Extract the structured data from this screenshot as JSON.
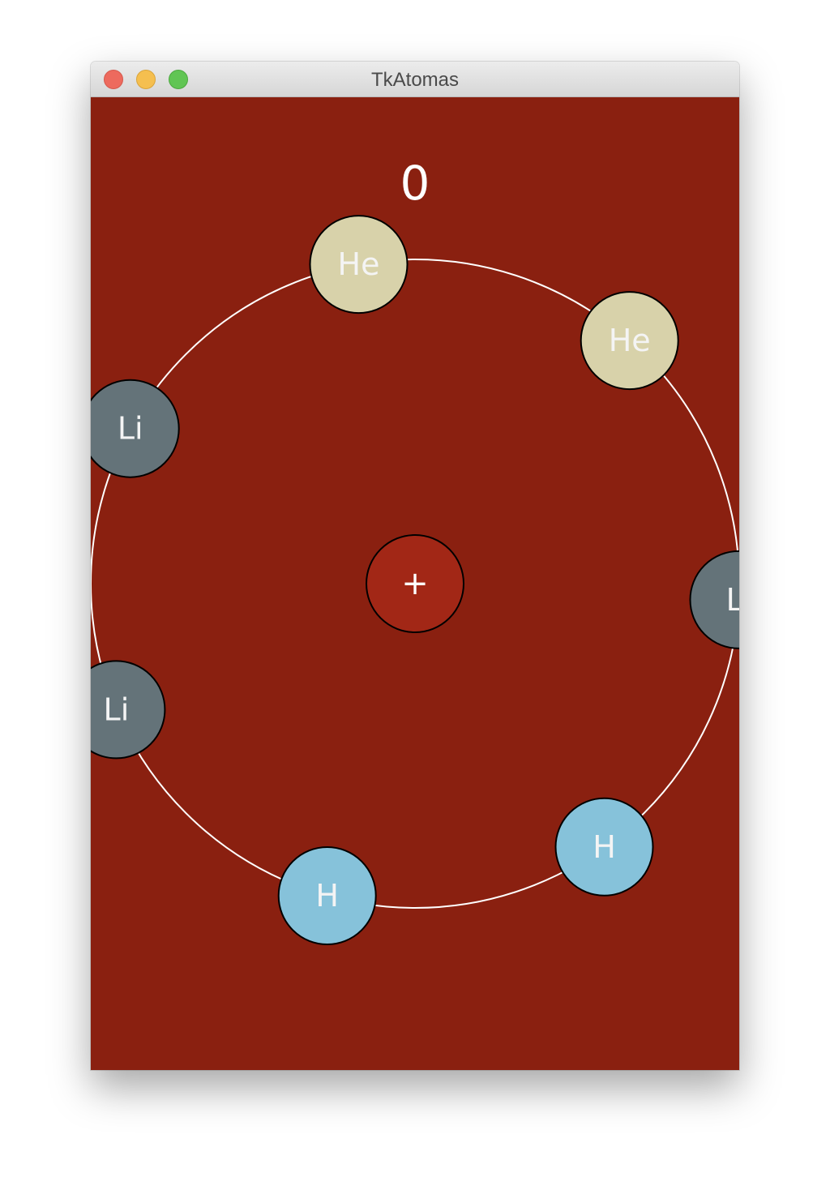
{
  "window": {
    "title": "TkAtomas"
  },
  "game": {
    "score": "0",
    "background_color": "#8a2010",
    "ring_color": "#ffffff",
    "center": {
      "label": "+",
      "color": "#a22716"
    },
    "atoms": [
      {
        "symbol": "He",
        "color": "#d8d2aa"
      },
      {
        "symbol": "He",
        "color": "#d8d2aa"
      },
      {
        "symbol": "Li",
        "color": "#647379"
      },
      {
        "symbol": "H",
        "color": "#86c2da"
      },
      {
        "symbol": "H",
        "color": "#86c2da"
      },
      {
        "symbol": "Li",
        "color": "#647379"
      },
      {
        "symbol": "Li",
        "color": "#647379"
      }
    ]
  }
}
